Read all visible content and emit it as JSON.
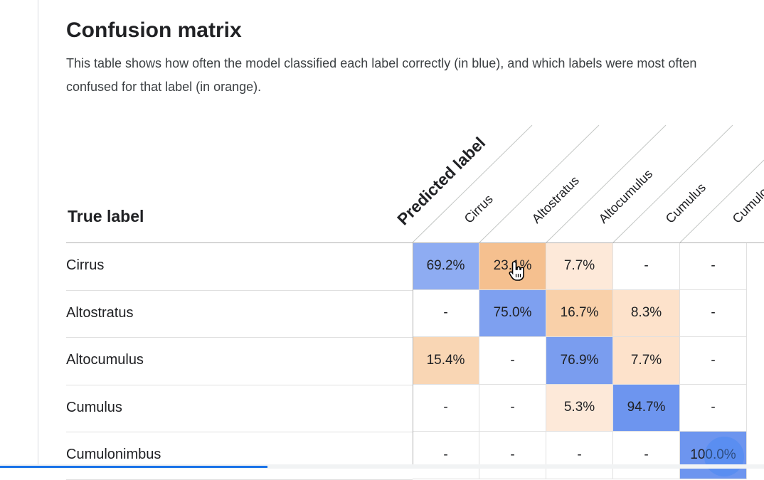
{
  "heading": "Confusion matrix",
  "description_line1": "This table shows how often the model classified each label correctly (in blue), and which labels were most often",
  "description_line2": "confused for that label (in orange).",
  "matrix": {
    "true_label_title": "True label",
    "predicted_label_title": "Predicted label",
    "columns": [
      "Cirrus",
      "Altostratus",
      "Altocumulus",
      "Cumulus",
      "Cumulonimbus"
    ],
    "rows": [
      {
        "label": "Cirrus",
        "cells": [
          "69.2%",
          "23.1%",
          "7.7%",
          "-",
          "-"
        ]
      },
      {
        "label": "Altostratus",
        "cells": [
          "-",
          "75.0%",
          "16.7%",
          "8.3%",
          "-"
        ]
      },
      {
        "label": "Altocumulus",
        "cells": [
          "15.4%",
          "-",
          "76.9%",
          "7.7%",
          "-"
        ]
      },
      {
        "label": "Cumulus",
        "cells": [
          "-",
          "-",
          "5.3%",
          "94.7%",
          "-"
        ]
      },
      {
        "label": "Cumulonimbus",
        "cells": [
          "-",
          "-",
          "-",
          "-",
          "100.0%"
        ]
      }
    ]
  },
  "colors": {
    "correct_high": "#6d95ef",
    "correct_mid": "#8eacf2",
    "confused_strong": "#f5c08f",
    "confused_mid": "#f9dcc0",
    "confused_light": "#fde9d9",
    "neutral": "#ffffff"
  },
  "cell_colors": [
    [
      "#8eacf2",
      "#f5c08f",
      "#fde9d9",
      "#ffffff",
      "#ffffff"
    ],
    [
      "#ffffff",
      "#7ea0f0",
      "#f9d0a9",
      "#fde2cb",
      "#ffffff"
    ],
    [
      "#f9d6b4",
      "#ffffff",
      "#7a9def",
      "#fde2cb",
      "#ffffff"
    ],
    [
      "#ffffff",
      "#ffffff",
      "#fde9d9",
      "#6d95ef",
      "#ffffff"
    ],
    [
      "#ffffff",
      "#ffffff",
      "#ffffff",
      "#ffffff",
      "#6d95ef"
    ]
  ],
  "scroll_progress_percent": 35,
  "icons": {
    "cursor": "hand-pointer-icon",
    "fab": "circle-action-icon"
  }
}
